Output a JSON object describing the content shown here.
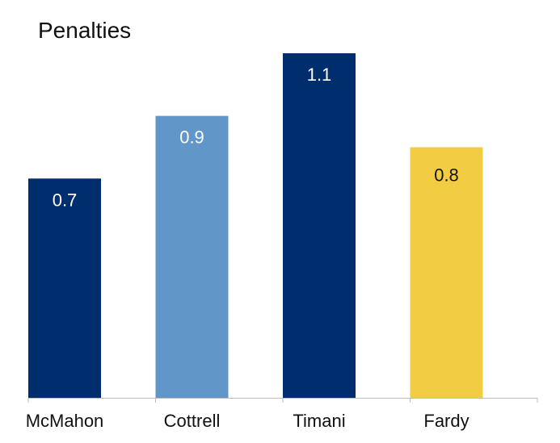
{
  "chart_data": {
    "type": "bar",
    "title": "Penalties",
    "xlabel": "",
    "ylabel": "",
    "categories": [
      "McMahon",
      "Cottrell",
      "Timani",
      "Fardy"
    ],
    "values": [
      0.7,
      0.9,
      1.1,
      0.8
    ],
    "data_labels": [
      "0.7",
      "0.9",
      "1.1",
      "0.8"
    ],
    "bar_colors": [
      "#002d6e",
      "#6096c8",
      "#002d6e",
      "#f2cd44"
    ],
    "label_colors": [
      "#ffffff",
      "#ffffff",
      "#ffffff",
      "#111111"
    ],
    "ylim": [
      0,
      1.1
    ],
    "grid": false,
    "legend": "none"
  }
}
